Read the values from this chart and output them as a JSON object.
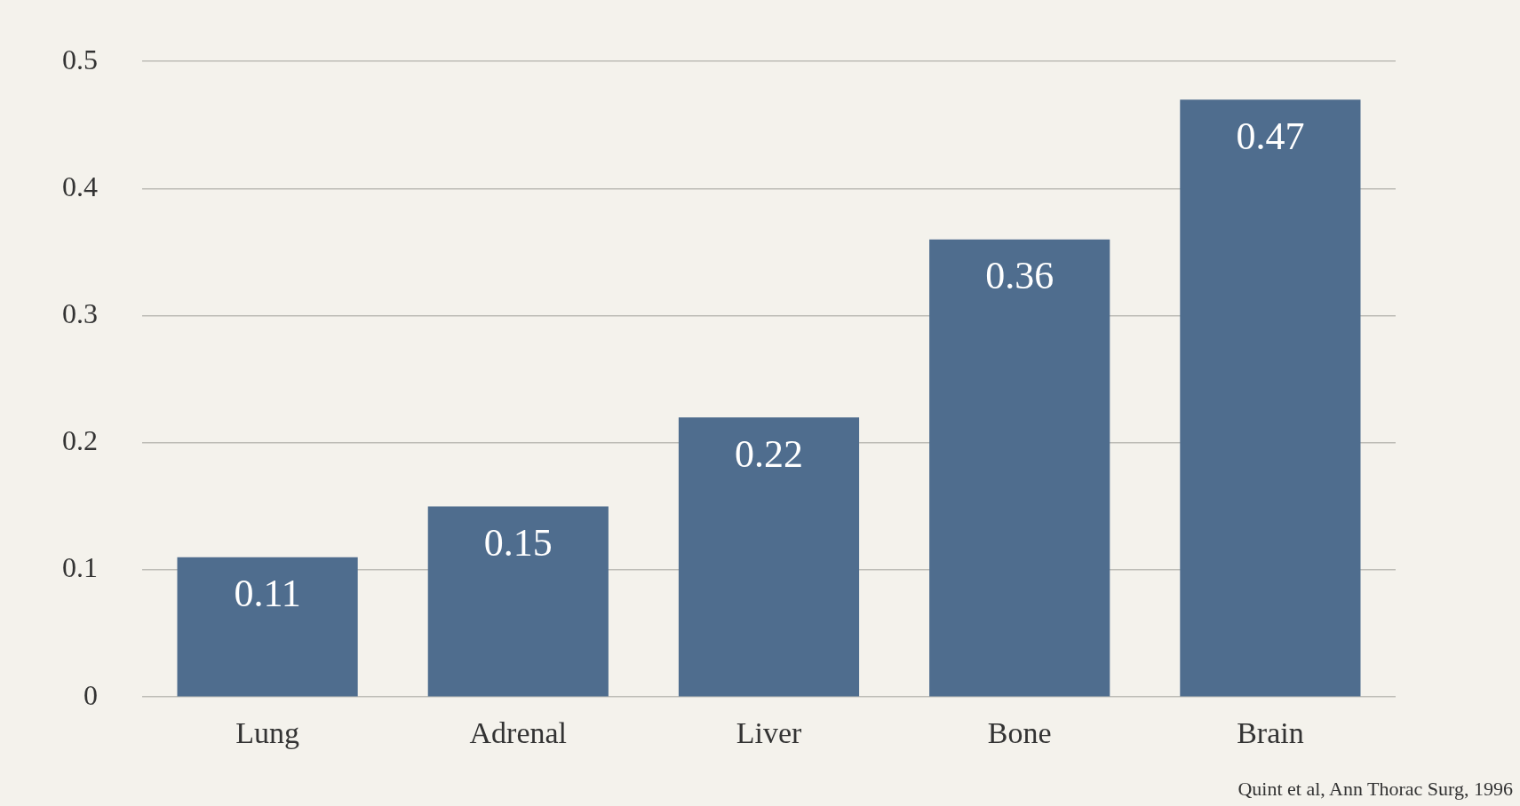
{
  "chart_data": {
    "type": "bar",
    "categories": [
      "Lung",
      "Adrenal",
      "Liver",
      "Bone",
      "Brain"
    ],
    "values": [
      0.11,
      0.15,
      0.22,
      0.36,
      0.47
    ],
    "color": "#4f6d8e",
    "ylim": [
      0,
      0.5
    ],
    "yticks": [
      0,
      0.1,
      0.2,
      0.3,
      0.4,
      0.5
    ],
    "grid": "y",
    "legend": false,
    "data_labels": true,
    "annotations": [
      "Quint et al, Ann Thorac Surg, 1996"
    ]
  }
}
